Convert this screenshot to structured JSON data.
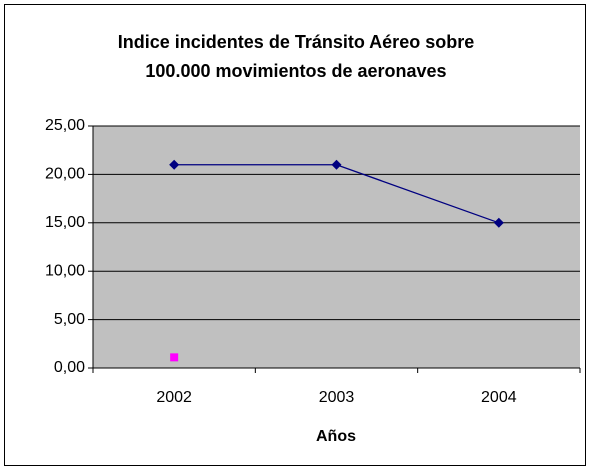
{
  "chart_data": {
    "type": "line",
    "title": [
      "Indice incidentes de Tránsito Aéreo sobre",
      "100.000 movimientos de aeronaves"
    ],
    "x_label": "Años",
    "categories": [
      "2002",
      "2003",
      "2004"
    ],
    "series": [
      {
        "color": "#000080",
        "marker": "diamond",
        "values": [
          21,
          21,
          15
        ]
      },
      {
        "color": "#ff00ff",
        "marker": "square",
        "values": [
          1.1,
          null,
          null
        ]
      }
    ],
    "ylim": [
      0,
      25
    ],
    "yticks": [
      {
        "value": 0,
        "label": "0,00"
      },
      {
        "value": 5,
        "label": "5,00"
      },
      {
        "value": 10,
        "label": "10,00"
      },
      {
        "value": 15,
        "label": "15,00"
      },
      {
        "value": 20,
        "label": "20,00"
      },
      {
        "value": 25,
        "label": "25,00"
      }
    ],
    "grid": true,
    "plot_background": "#c0c0c0"
  }
}
